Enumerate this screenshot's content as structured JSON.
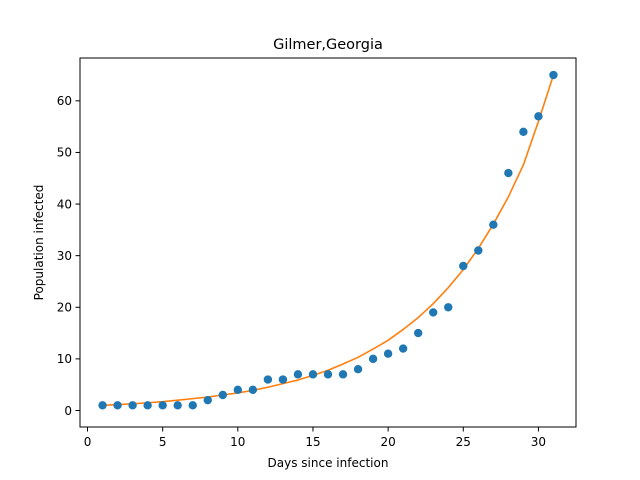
{
  "chart_data": {
    "type": "scatter",
    "title": "Gilmer,Georgia",
    "xlabel": "Days since infection",
    "ylabel": "Population infected",
    "xlim": [
      -0.5,
      32.5
    ],
    "ylim": [
      -3.2,
      68.3
    ],
    "xticks": [
      0,
      5,
      10,
      15,
      20,
      25,
      30
    ],
    "yticks": [
      0,
      10,
      20,
      30,
      40,
      50,
      60
    ],
    "grid": false,
    "series": [
      {
        "type": "scatter",
        "color": "#1f77b4",
        "x": [
          1,
          2,
          3,
          4,
          5,
          6,
          7,
          8,
          9,
          10,
          11,
          12,
          13,
          14,
          15,
          16,
          17,
          18,
          19,
          20,
          21,
          22,
          23,
          24,
          25,
          26,
          27,
          28,
          29,
          30,
          31
        ],
        "y": [
          1,
          1,
          1,
          1,
          1,
          1,
          1,
          2,
          3,
          4,
          4,
          6,
          6,
          7,
          7,
          7,
          7,
          8,
          10,
          11,
          12,
          15,
          19,
          20,
          28,
          31,
          36,
          46,
          54,
          57,
          65
        ]
      },
      {
        "type": "line",
        "color": "#ff7f0e",
        "x": [
          1,
          2,
          3,
          4,
          5,
          6,
          7,
          8,
          9,
          10,
          11,
          12,
          13,
          14,
          15,
          16,
          17,
          18,
          19,
          20,
          21,
          22,
          23,
          24,
          25,
          26,
          27,
          28,
          29,
          30,
          31
        ],
        "y": [
          1.0,
          1.15,
          1.3,
          1.5,
          1.7,
          2.0,
          2.3,
          2.6,
          3.0,
          3.4,
          3.9,
          4.5,
          5.2,
          5.9,
          6.8,
          7.8,
          9.0,
          10.3,
          11.9,
          13.6,
          15.7,
          18.0,
          20.7,
          23.8,
          27.3,
          31.4,
          36.1,
          41.4,
          47.6,
          56.0,
          65.0
        ]
      }
    ]
  }
}
